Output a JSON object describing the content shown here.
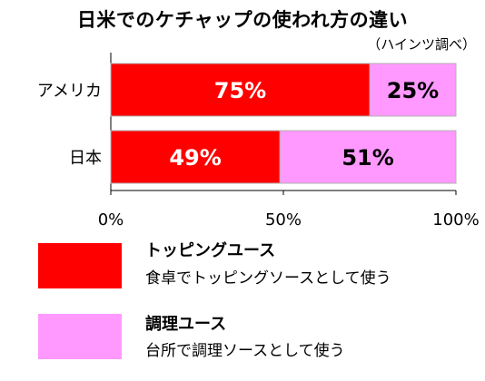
{
  "title": "日米でのケチャップの使われ方の違い",
  "subtitle": "（ハインツ調べ）",
  "colors": {
    "topping": "#ff0000",
    "cooking": "#ff99ff",
    "bar_border": "#b0b0b0"
  },
  "chart_data": {
    "type": "bar",
    "orientation": "horizontal",
    "stacked": true,
    "percent": true,
    "categories": [
      "アメリカ",
      "日本"
    ],
    "series": [
      {
        "name": "トッピングユース",
        "values": [
          75,
          49
        ],
        "labels": [
          "75%",
          "49%"
        ]
      },
      {
        "name": "調理ユース",
        "values": [
          25,
          51
        ],
        "labels": [
          "25%",
          "51%"
        ]
      }
    ],
    "xlim": [
      0,
      100
    ],
    "xticks": [
      {
        "value": 0,
        "label": "0%"
      },
      {
        "value": 50,
        "label": "50%"
      },
      {
        "value": 100,
        "label": "100%"
      }
    ],
    "grid": false,
    "legend_position": "bottom"
  },
  "legend": [
    {
      "name": "トッピングユース",
      "description": "食卓でトッピングソースとして使う"
    },
    {
      "name": "調理ユース",
      "description": "台所で調理ソースとして使う"
    }
  ]
}
